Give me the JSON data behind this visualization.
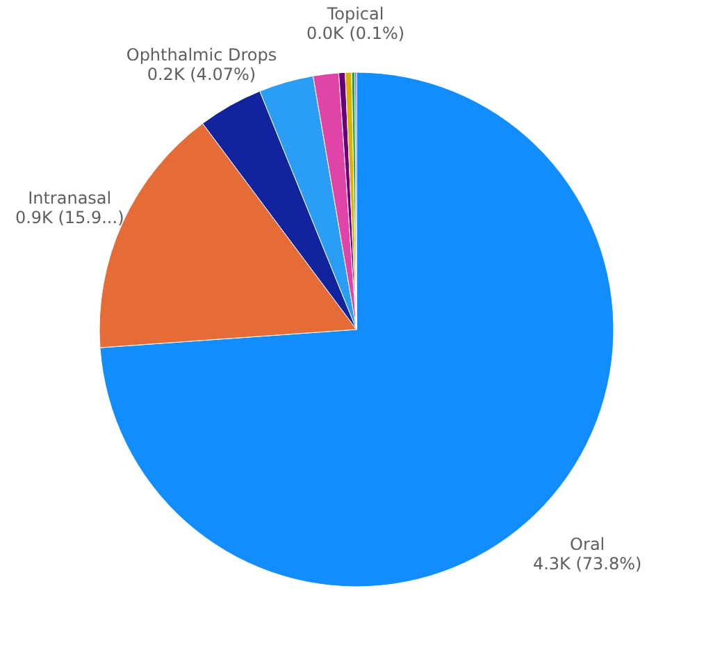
{
  "chart_data": {
    "type": "pie",
    "categories": [
      "Oral",
      "Intranasal",
      "Ophthalmic Drops",
      null,
      null,
      null,
      null,
      null,
      "Topical"
    ],
    "values": [
      73.8,
      15.9,
      4.07,
      3.43,
      1.6,
      0.4,
      0.4,
      0.2,
      0.1
    ],
    "value_labels": [
      "4.3K (73.8%)",
      "0.9K (15.9...)",
      "0.2K (4.07%)",
      null,
      null,
      null,
      null,
      null,
      "0.0K (0.1%)"
    ],
    "colors": [
      "#118dff",
      "#e66c37",
      "#12239e",
      "#2a9df4",
      "#e044a7",
      "#6b007b",
      "#d9b300",
      "#1aab40",
      "#744ec2"
    ],
    "legend": false
  }
}
